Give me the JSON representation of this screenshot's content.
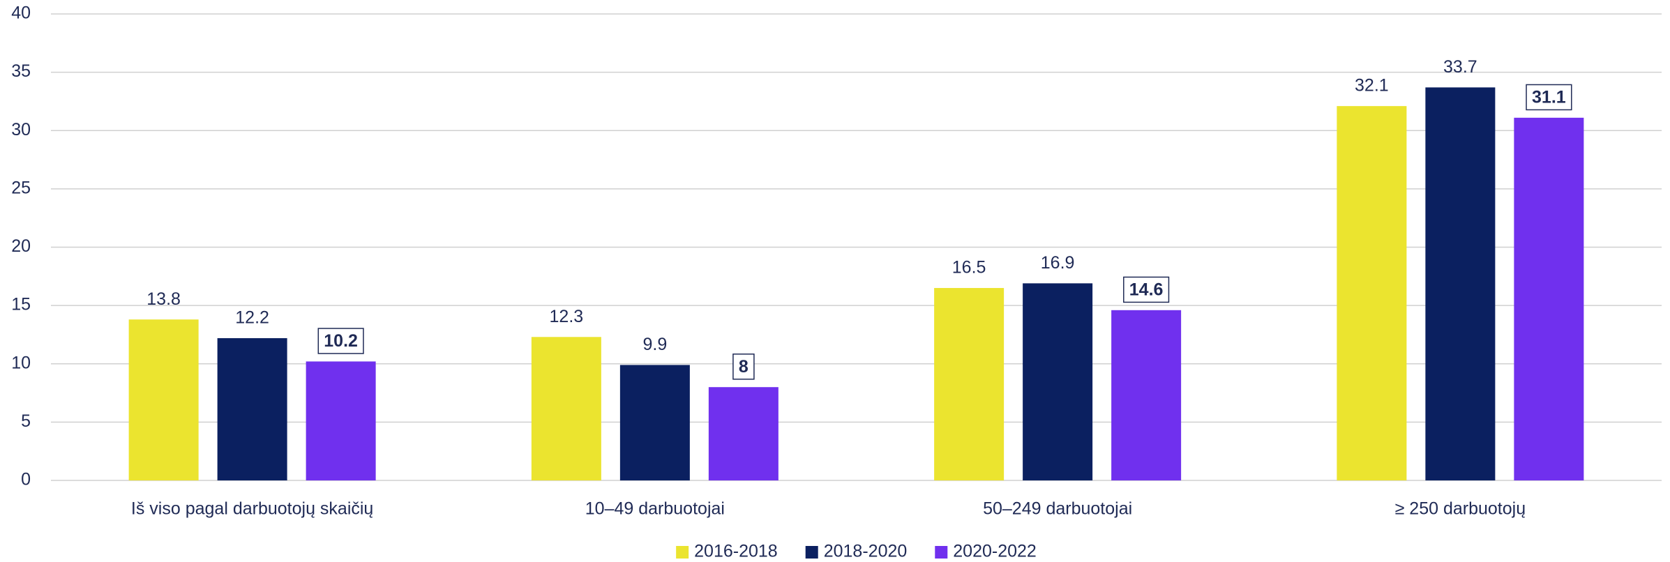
{
  "chart_data": {
    "type": "bar",
    "categories": [
      "Iš viso pagal darbuotojų skaičių",
      "10–49 darbuotojai",
      "50–249 darbuotojai",
      "≥ 250 darbuotojų"
    ],
    "series": [
      {
        "name": "2016-2018",
        "color": "#ebe42f",
        "values": [
          13.8,
          12.3,
          16.5,
          32.1
        ]
      },
      {
        "name": "2018-2020",
        "color": "#0b2060",
        "values": [
          12.2,
          9.9,
          16.9,
          33.7
        ]
      },
      {
        "name": "2020-2022",
        "color": "#7030ee",
        "values": [
          10.2,
          8,
          14.6,
          31.1
        ],
        "label_style": "boxed"
      }
    ],
    "ylim": [
      0,
      40
    ],
    "yticks": [
      0,
      5,
      10,
      15,
      20,
      25,
      30,
      35,
      40
    ],
    "grid": true,
    "legend": "bottom"
  }
}
